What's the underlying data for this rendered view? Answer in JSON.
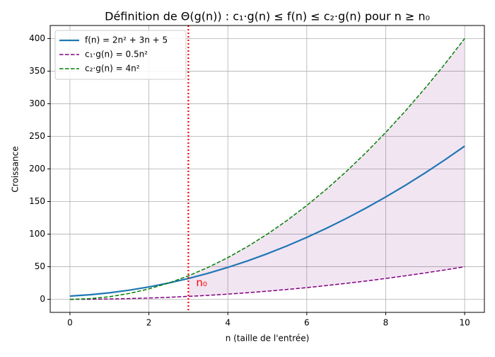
{
  "chart_data": {
    "type": "line",
    "title": "Définition de Θ(g(n)) : c₁·g(n) ≤ f(n) ≤ c₂·g(n) pour n ≥ n₀",
    "xlabel": "n (taille de l'entrée)",
    "ylabel": "Croissance",
    "x": [
      0,
      0.5,
      1,
      1.5,
      2,
      2.5,
      3,
      3.5,
      4,
      4.5,
      5,
      5.5,
      6,
      6.5,
      7,
      7.5,
      8,
      8.5,
      9,
      9.5,
      10
    ],
    "series": [
      {
        "name": "f(n) = 2n² + 3n + 5",
        "color": "#1f77b4",
        "dash": false,
        "values": [
          5,
          7,
          10,
          14,
          19,
          25,
          32,
          40,
          49,
          59,
          70,
          82,
          95,
          109,
          124,
          140,
          157,
          175,
          194,
          214,
          235
        ]
      },
      {
        "name": "c₁·g(n) = 0.5n²",
        "color": "#800080",
        "dash": true,
        "values": [
          0,
          0.125,
          0.5,
          1.125,
          2,
          3.125,
          4.5,
          6.125,
          8,
          10.125,
          12.5,
          15.125,
          18,
          21.125,
          24.5,
          28.125,
          32,
          36.125,
          40.5,
          45.125,
          50
        ]
      },
      {
        "name": "c₂·g(n) = 4n²",
        "color": "#008000",
        "dash": true,
        "values": [
          0,
          1,
          4,
          9,
          16,
          25,
          36,
          49,
          64,
          81,
          100,
          121,
          144,
          169,
          196,
          225,
          256,
          289,
          324,
          361,
          400
        ]
      }
    ],
    "fill_color": "#800080",
    "vline": {
      "x": 3,
      "label": "n₀",
      "color": "#ff0000"
    },
    "xlim": [
      -0.5,
      10.5
    ],
    "xticks": [
      0,
      2,
      4,
      6,
      8,
      10
    ],
    "ylim": [
      -20,
      420
    ],
    "yticks": [
      0,
      50,
      100,
      150,
      200,
      250,
      300,
      350,
      400
    ],
    "grid": true,
    "legend": "upper left"
  }
}
